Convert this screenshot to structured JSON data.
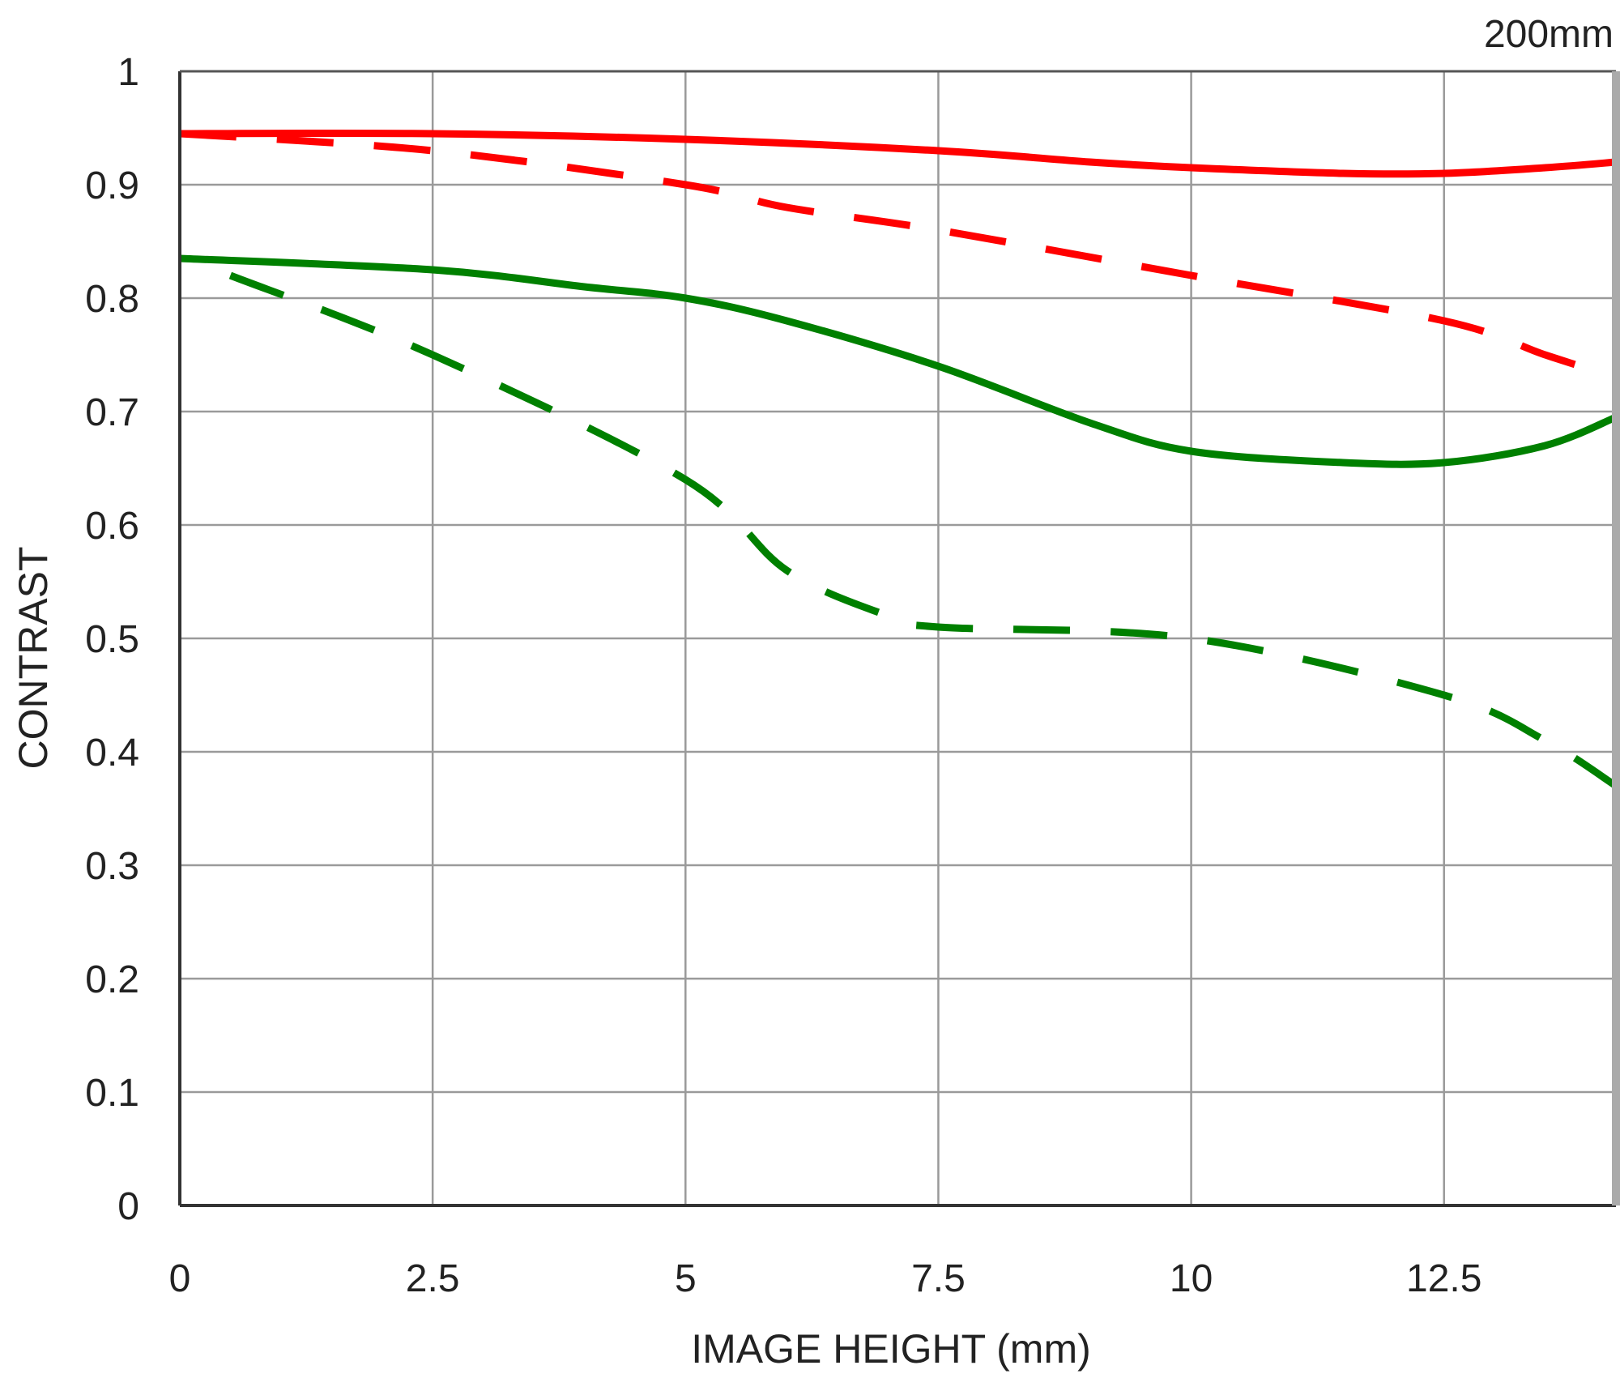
{
  "chart_data": {
    "type": "line",
    "title": "200mm",
    "xlabel": "IMAGE HEIGHT (mm)",
    "ylabel": "CONTRAST",
    "xlim": [
      0,
      14.2
    ],
    "ylim": [
      0,
      1
    ],
    "x_ticks": [
      "0",
      "2.5",
      "5",
      "7.5",
      "10",
      "12.5"
    ],
    "y_ticks": [
      "0",
      "0.1",
      "0.2",
      "0.3",
      "0.4",
      "0.5",
      "0.6",
      "0.7",
      "0.8",
      "0.9",
      "1"
    ],
    "grid": true,
    "series": [
      {
        "color": "#ff0000",
        "style": "solid",
        "x": [
          0,
          2.5,
          5,
          7.5,
          9,
          10,
          11.5,
          12.5,
          13.5,
          14.2
        ],
        "y": [
          0.945,
          0.945,
          0.94,
          0.93,
          0.92,
          0.915,
          0.91,
          0.91,
          0.915,
          0.92
        ]
      },
      {
        "color": "#ff0000",
        "style": "dashed",
        "x": [
          0,
          2.5,
          5,
          6,
          7.5,
          10,
          12.5,
          13.5,
          14.2
        ],
        "y": [
          0.945,
          0.93,
          0.9,
          0.88,
          0.86,
          0.82,
          0.78,
          0.75,
          0.73
        ]
      },
      {
        "color": "#008000",
        "style": "solid",
        "x": [
          0,
          2.5,
          4,
          5,
          6,
          7.5,
          9,
          10,
          11.5,
          12.5,
          13.5,
          14.2
        ],
        "y": [
          0.835,
          0.825,
          0.81,
          0.8,
          0.78,
          0.74,
          0.69,
          0.665,
          0.655,
          0.655,
          0.67,
          0.695
        ]
      },
      {
        "color": "#008000",
        "style": "dashed",
        "x": [
          0.5,
          2.5,
          5,
          6,
          7,
          7.5,
          10,
          12.5,
          13.5,
          14.2
        ],
        "y": [
          0.82,
          0.75,
          0.64,
          0.56,
          0.52,
          0.51,
          0.5,
          0.45,
          0.41,
          0.37
        ]
      }
    ]
  }
}
